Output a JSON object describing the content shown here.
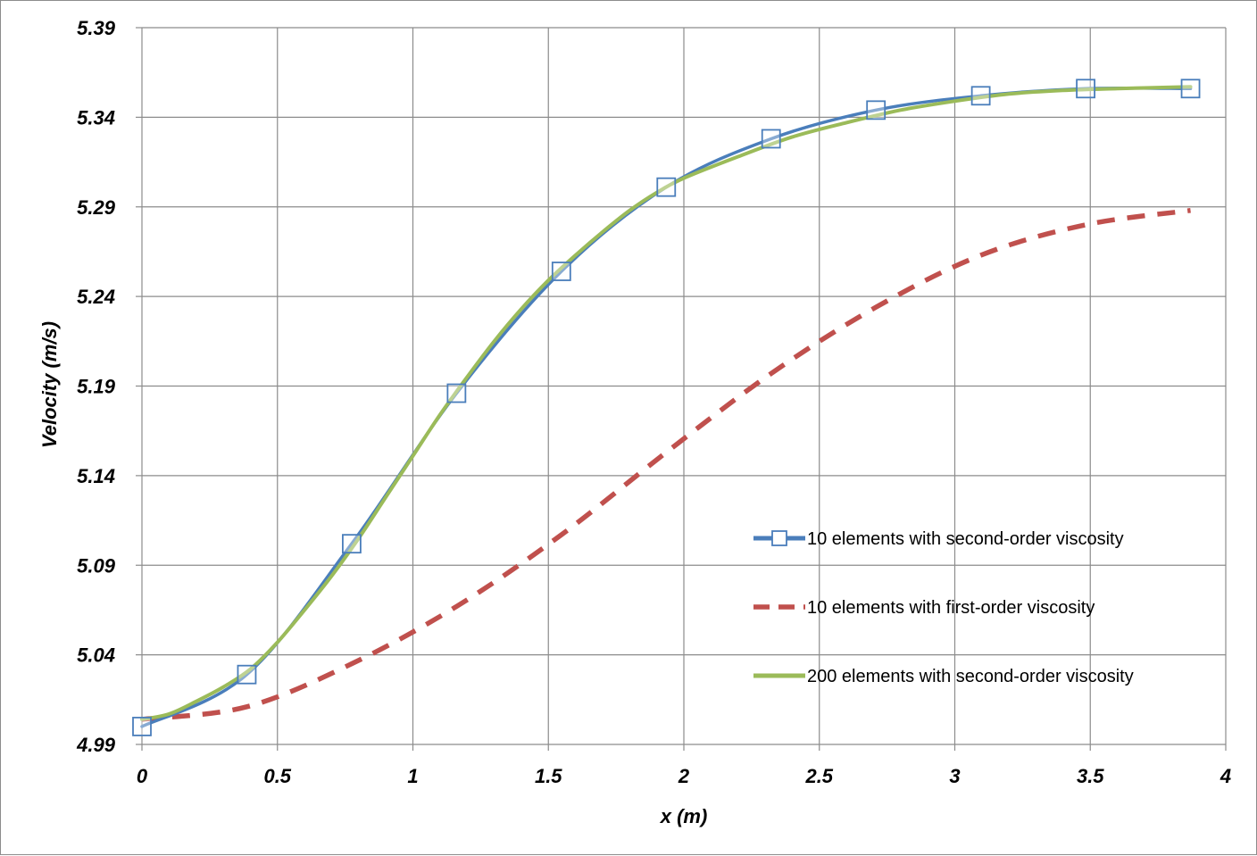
{
  "chart_data": {
    "type": "line",
    "xlabel": "x (m)",
    "ylabel": "Velocity (m/s)",
    "xlim": [
      0,
      4
    ],
    "ylim": [
      4.99,
      5.39
    ],
    "x_ticks": [
      "0",
      "0.5",
      "1",
      "1.5",
      "2",
      "2.5",
      "3",
      "3.5",
      "4"
    ],
    "y_ticks": [
      "4.99",
      "5.04",
      "5.09",
      "5.14",
      "5.19",
      "5.24",
      "5.29",
      "5.34",
      "5.39"
    ],
    "grid": true,
    "legend_position": "center-right",
    "series": [
      {
        "name": "10 elements with second-order viscosity",
        "color": "#4a7ebb",
        "style": "solid",
        "marker": "square",
        "x": [
          0,
          0.387,
          0.774,
          1.161,
          1.548,
          1.935,
          2.322,
          2.709,
          3.096,
          3.483,
          3.87
        ],
        "y": [
          5.0,
          5.029,
          5.102,
          5.186,
          5.254,
          5.301,
          5.328,
          5.344,
          5.352,
          5.356,
          5.356
        ]
      },
      {
        "name": "10 elements with first-order viscosity",
        "color": "#c0504d",
        "style": "dashed",
        "marker": "none",
        "x": [
          0,
          0.387,
          0.774,
          1.161,
          1.548,
          1.935,
          2.322,
          2.709,
          3.096,
          3.483,
          3.87
        ],
        "y": [
          5.004,
          5.011,
          5.035,
          5.067,
          5.107,
          5.153,
          5.197,
          5.234,
          5.263,
          5.28,
          5.288
        ]
      },
      {
        "name": "200 elements with second-order viscosity",
        "color": "#9bbb59",
        "style": "solid",
        "marker": "none",
        "x": [
          0,
          0.1,
          0.2,
          0.3,
          0.4,
          0.5,
          0.6,
          0.7,
          0.8,
          0.9,
          1.0,
          1.1,
          1.2,
          1.3,
          1.4,
          1.5,
          1.6,
          1.7,
          1.8,
          1.9,
          2.0,
          2.2,
          2.4,
          2.6,
          2.8,
          3.0,
          3.2,
          3.4,
          3.6,
          3.87
        ],
        "y": [
          5.004,
          5.007,
          5.014,
          5.022,
          5.032,
          5.047,
          5.065,
          5.084,
          5.105,
          5.128,
          5.151,
          5.174,
          5.195,
          5.215,
          5.233,
          5.249,
          5.263,
          5.276,
          5.288,
          5.298,
          5.306,
          5.318,
          5.329,
          5.337,
          5.344,
          5.349,
          5.353,
          5.355,
          5.356,
          5.357
        ]
      }
    ]
  }
}
